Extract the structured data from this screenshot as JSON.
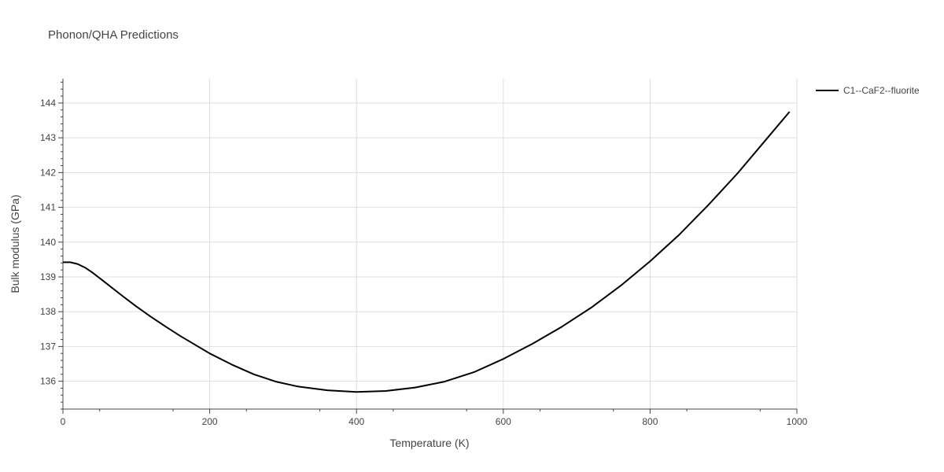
{
  "chart_data": {
    "type": "line",
    "title": "Phonon/QHA Predictions",
    "xlabel": "Temperature (K)",
    "ylabel": "Bulk modulus (GPa)",
    "xlim": [
      0,
      1000
    ],
    "ylim": [
      135.2,
      144.7
    ],
    "x_ticks": [
      0,
      200,
      400,
      600,
      800,
      1000
    ],
    "y_ticks": [
      136,
      137,
      138,
      139,
      140,
      141,
      142,
      143,
      144
    ],
    "grid": true,
    "legend_position": "top-right",
    "series": [
      {
        "name": "C1--CaF2--fluorite",
        "color": "#000000",
        "x": [
          0,
          10,
          20,
          30,
          40,
          60,
          80,
          100,
          120,
          140,
          160,
          180,
          200,
          230,
          260,
          290,
          320,
          360,
          400,
          440,
          480,
          520,
          560,
          600,
          640,
          680,
          720,
          760,
          800,
          840,
          880,
          920,
          960,
          990
        ],
        "y": [
          139.42,
          139.42,
          139.37,
          139.27,
          139.13,
          138.8,
          138.47,
          138.15,
          137.85,
          137.57,
          137.3,
          137.05,
          136.8,
          136.48,
          136.2,
          135.99,
          135.85,
          135.74,
          135.69,
          135.72,
          135.82,
          135.99,
          136.26,
          136.64,
          137.08,
          137.57,
          138.12,
          138.75,
          139.45,
          140.22,
          141.08,
          142.0,
          143.0,
          143.75
        ]
      }
    ]
  }
}
